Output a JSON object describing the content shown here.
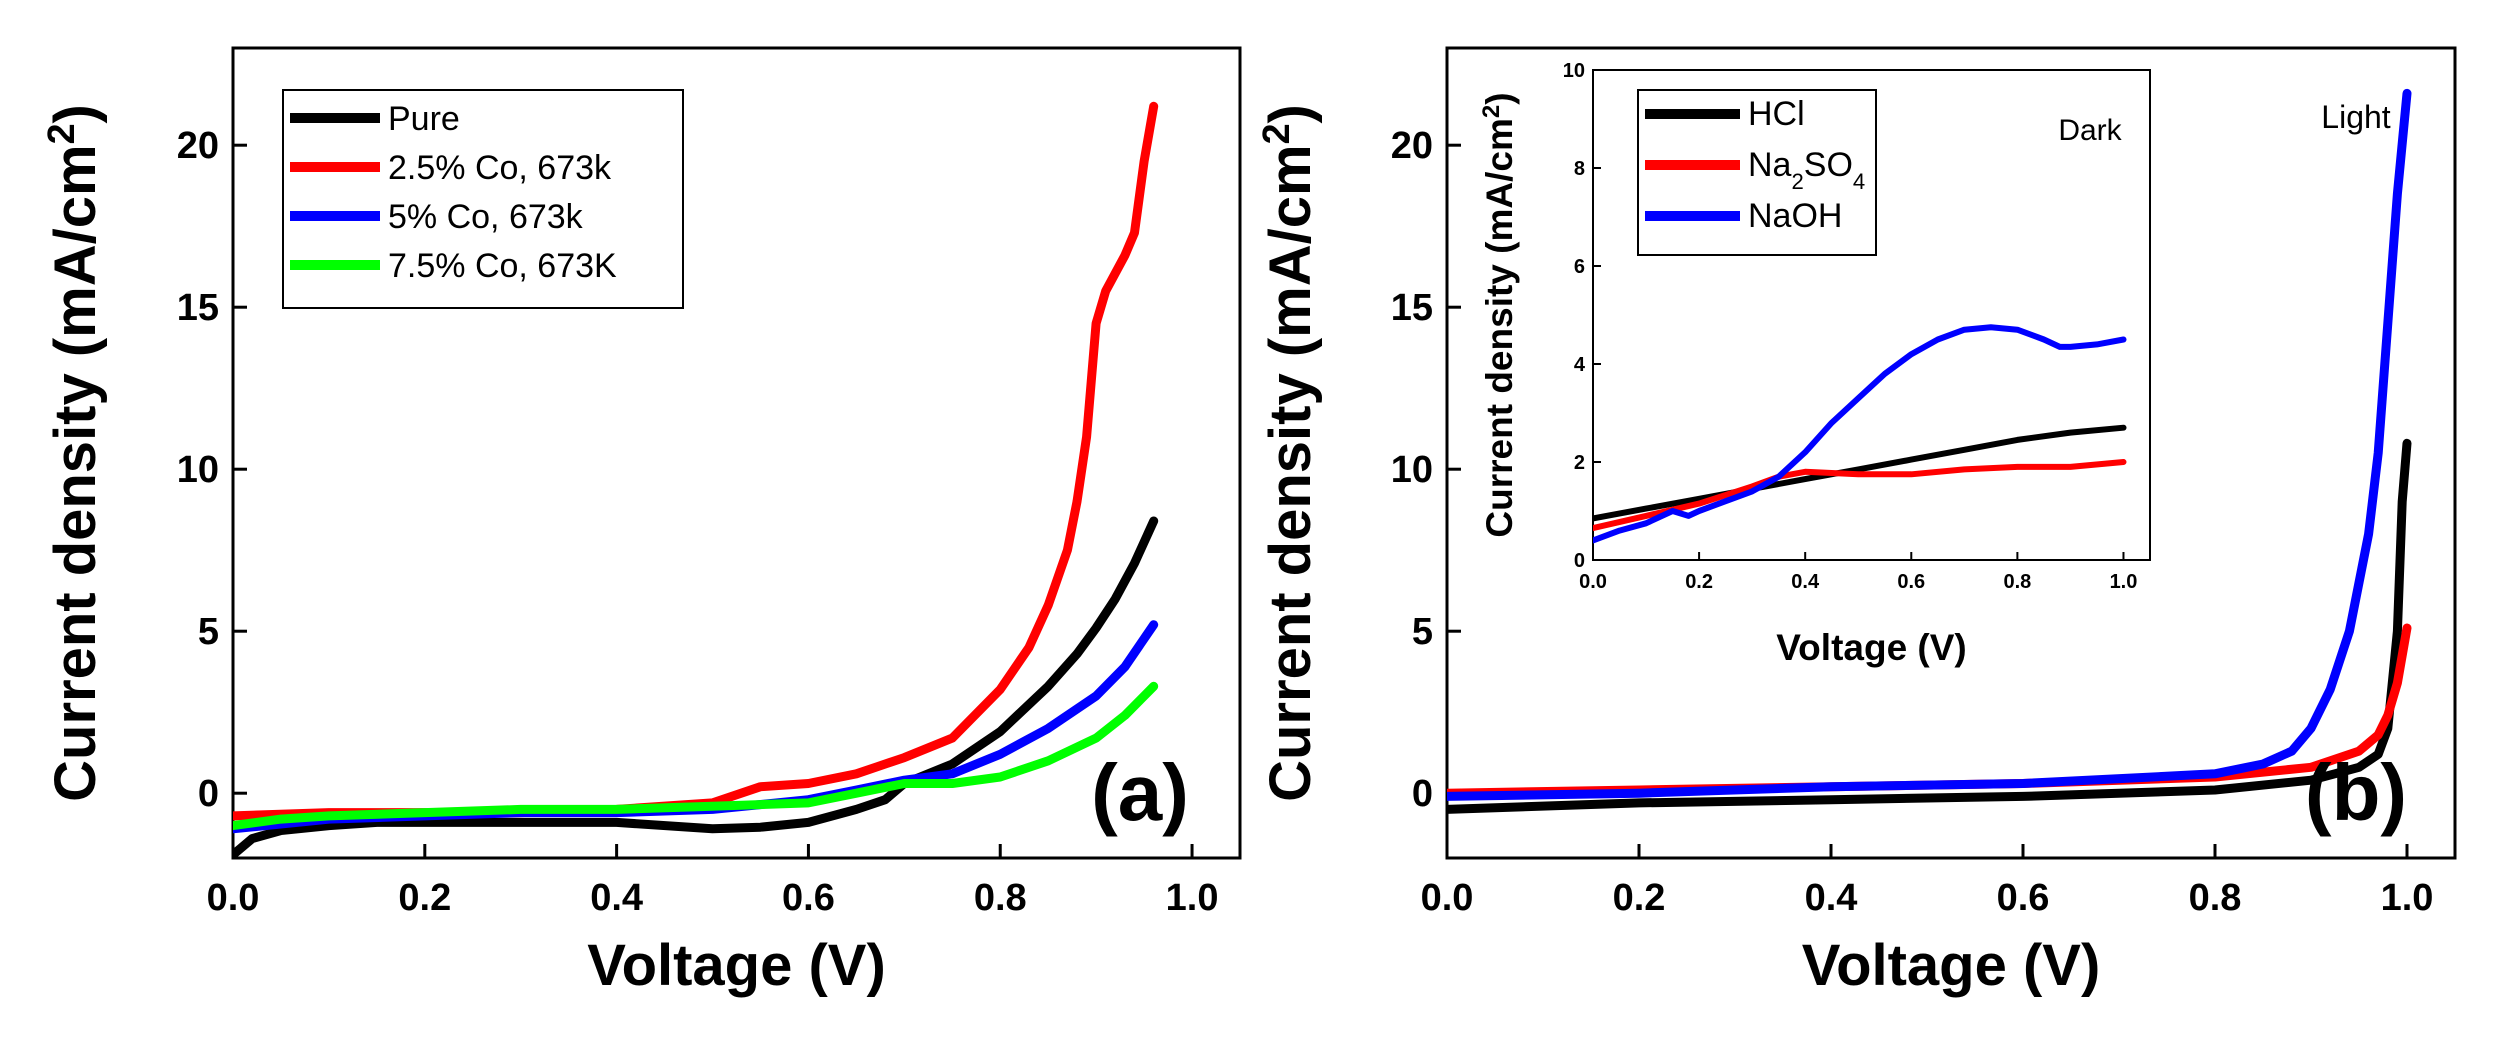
{
  "chart_data": [
    {
      "id": "a",
      "type": "line",
      "panel_label": "(a)",
      "xlabel": "Voltage (V)",
      "ylabel": "Current density (mA/cm²)",
      "ylabel_parts": [
        "Current density (mA/cm",
        "2",
        ")"
      ],
      "xlim": [
        0.0,
        1.05
      ],
      "ylim": [
        -2.0,
        23.0
      ],
      "x_ticks": [
        0.0,
        0.2,
        0.4,
        0.6,
        0.8,
        1.0
      ],
      "x_tick_labels": [
        "0.0",
        "0.2",
        "0.4",
        "0.6",
        "0.8",
        "1.0"
      ],
      "y_ticks": [
        0,
        5,
        10,
        15,
        20
      ],
      "y_tick_labels": [
        "0",
        "5",
        "10",
        "15",
        "20"
      ],
      "legend_position": "top-left",
      "series": [
        {
          "name": "Pure",
          "color": "#000000",
          "x": [
            0.0,
            0.02,
            0.05,
            0.1,
            0.15,
            0.2,
            0.3,
            0.4,
            0.5,
            0.55,
            0.6,
            0.65,
            0.68,
            0.7,
            0.75,
            0.8,
            0.85,
            0.88,
            0.9,
            0.92,
            0.94,
            0.96
          ],
          "y": [
            -1.9,
            -1.4,
            -1.15,
            -1.0,
            -0.9,
            -0.9,
            -0.9,
            -0.9,
            -1.1,
            -1.05,
            -0.9,
            -0.5,
            -0.2,
            0.3,
            0.9,
            1.9,
            3.3,
            4.3,
            5.1,
            6.0,
            7.1,
            8.4
          ]
        },
        {
          "name": "2.5% Co, 673k",
          "color": "#ff0000",
          "x": [
            0.0,
            0.1,
            0.2,
            0.3,
            0.4,
            0.5,
            0.55,
            0.6,
            0.65,
            0.7,
            0.75,
            0.8,
            0.83,
            0.85,
            0.87,
            0.88,
            0.89,
            0.9,
            0.91,
            0.93,
            0.94,
            0.95,
            0.96
          ],
          "y": [
            -0.7,
            -0.6,
            -0.6,
            -0.6,
            -0.5,
            -0.3,
            0.2,
            0.3,
            0.6,
            1.1,
            1.7,
            3.2,
            4.5,
            5.8,
            7.5,
            9.0,
            11.0,
            14.5,
            15.5,
            16.6,
            17.3,
            19.5,
            21.2
          ]
        },
        {
          "name": "5% Co, 673k",
          "color": "#0000ff",
          "x": [
            0.0,
            0.1,
            0.2,
            0.3,
            0.4,
            0.5,
            0.6,
            0.65,
            0.7,
            0.75,
            0.8,
            0.85,
            0.9,
            0.93,
            0.96
          ],
          "y": [
            -1.1,
            -0.8,
            -0.7,
            -0.6,
            -0.6,
            -0.5,
            -0.2,
            0.1,
            0.4,
            0.6,
            1.2,
            2.0,
            3.0,
            3.9,
            5.2
          ]
        },
        {
          "name": "7.5% Co, 673K",
          "color": "#00ff00",
          "x": [
            0.0,
            0.05,
            0.1,
            0.2,
            0.3,
            0.4,
            0.5,
            0.6,
            0.65,
            0.7,
            0.75,
            0.8,
            0.85,
            0.9,
            0.93,
            0.96
          ],
          "y": [
            -1.0,
            -0.8,
            -0.7,
            -0.6,
            -0.5,
            -0.5,
            -0.4,
            -0.3,
            0.0,
            0.3,
            0.3,
            0.5,
            1.0,
            1.7,
            2.4,
            3.3
          ]
        }
      ]
    },
    {
      "id": "b",
      "type": "line",
      "panel_label": "(b)",
      "xlabel": "Voltage (V)",
      "ylabel": "Current density (mA/cm²)",
      "ylabel_parts": [
        "Current density (mA/cm",
        "2",
        ")"
      ],
      "xlim": [
        0.0,
        1.05
      ],
      "ylim": [
        -2.0,
        23.0
      ],
      "x_ticks": [
        0.0,
        0.2,
        0.4,
        0.6,
        0.8,
        1.0
      ],
      "x_tick_labels": [
        "0.0",
        "0.2",
        "0.4",
        "0.6",
        "0.8",
        "1.0"
      ],
      "y_ticks": [
        0,
        5,
        10,
        15,
        20
      ],
      "y_tick_labels": [
        "0",
        "5",
        "10",
        "15",
        "20"
      ],
      "annotation": "Light",
      "series": [
        {
          "name": "HCl",
          "color": "#000000",
          "x": [
            0.0,
            0.2,
            0.4,
            0.6,
            0.8,
            0.9,
            0.95,
            0.97,
            0.98,
            0.99,
            0.995,
            1.0
          ],
          "y": [
            -0.5,
            -0.3,
            -0.2,
            -0.1,
            0.1,
            0.4,
            0.8,
            1.2,
            2.0,
            5.0,
            9.0,
            10.8
          ]
        },
        {
          "name": "Na2SO4",
          "color": "#ff0000",
          "x": [
            0.0,
            0.2,
            0.4,
            0.6,
            0.8,
            0.9,
            0.95,
            0.97,
            0.98,
            0.99,
            1.0
          ],
          "y": [
            0.0,
            0.1,
            0.2,
            0.3,
            0.5,
            0.8,
            1.3,
            1.8,
            2.4,
            3.4,
            5.1
          ]
        },
        {
          "name": "NaOH",
          "color": "#0000ff",
          "x": [
            0.0,
            0.2,
            0.4,
            0.6,
            0.8,
            0.85,
            0.88,
            0.9,
            0.92,
            0.94,
            0.96,
            0.97,
            0.98,
            0.99,
            1.0
          ],
          "y": [
            -0.1,
            0.0,
            0.2,
            0.3,
            0.6,
            0.9,
            1.3,
            2.0,
            3.2,
            5.0,
            8.0,
            10.5,
            14.5,
            18.5,
            21.6
          ]
        }
      ]
    },
    {
      "id": "b-inset",
      "type": "line",
      "xlabel": "Voltage (V)",
      "ylabel": "Current density (mA/cm²)",
      "ylabel_parts": [
        "Current density (mA/cm",
        "2",
        ")"
      ],
      "xlim": [
        0.0,
        1.05
      ],
      "ylim": [
        0.0,
        10.0
      ],
      "x_ticks": [
        0.0,
        0.2,
        0.4,
        0.6,
        0.8,
        1.0
      ],
      "x_tick_labels": [
        "0.0",
        "0.2",
        "0.4",
        "0.6",
        "0.8",
        "1.0"
      ],
      "y_ticks": [
        0,
        2,
        4,
        6,
        8,
        10
      ],
      "y_tick_labels": [
        "0",
        "2",
        "4",
        "6",
        "8",
        "10"
      ],
      "annotation": "Dark",
      "legend_position": "top-left",
      "series": [
        {
          "name": "HCl",
          "label_parts": [
            "HCl"
          ],
          "color": "#000000",
          "x": [
            0.0,
            0.1,
            0.2,
            0.3,
            0.4,
            0.5,
            0.6,
            0.7,
            0.8,
            0.9,
            1.0
          ],
          "y": [
            0.85,
            1.05,
            1.25,
            1.45,
            1.65,
            1.85,
            2.05,
            2.25,
            2.45,
            2.6,
            2.7
          ]
        },
        {
          "name": "Na2SO4",
          "label_parts": [
            "Na",
            "2",
            "SO",
            "4"
          ],
          "color": "#ff0000",
          "x": [
            0.0,
            0.1,
            0.2,
            0.3,
            0.35,
            0.4,
            0.5,
            0.6,
            0.7,
            0.8,
            0.9,
            1.0
          ],
          "y": [
            0.65,
            0.9,
            1.15,
            1.5,
            1.7,
            1.8,
            1.75,
            1.75,
            1.85,
            1.9,
            1.9,
            2.0
          ]
        },
        {
          "name": "NaOH",
          "label_parts": [
            "NaOH"
          ],
          "color": "#0000ff",
          "x": [
            0.0,
            0.05,
            0.1,
            0.15,
            0.18,
            0.2,
            0.25,
            0.3,
            0.35,
            0.4,
            0.45,
            0.5,
            0.55,
            0.6,
            0.65,
            0.7,
            0.75,
            0.8,
            0.85,
            0.88,
            0.9,
            0.95,
            1.0
          ],
          "y": [
            0.4,
            0.6,
            0.75,
            1.0,
            0.9,
            1.0,
            1.2,
            1.4,
            1.7,
            2.2,
            2.8,
            3.3,
            3.8,
            4.2,
            4.5,
            4.7,
            4.75,
            4.7,
            4.5,
            4.35,
            4.35,
            4.4,
            4.5
          ]
        }
      ]
    }
  ]
}
